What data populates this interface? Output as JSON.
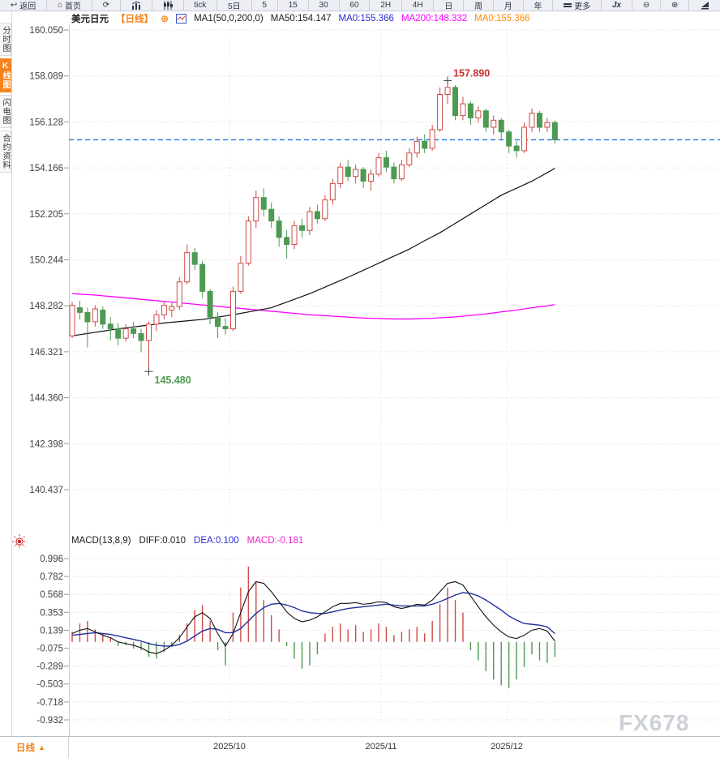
{
  "toolbar": {
    "items": [
      {
        "label": "返回"
      },
      {
        "label": "首页"
      },
      {
        "label": ""
      },
      {
        "label": ""
      },
      {
        "label": ""
      },
      {
        "label": "tick"
      },
      {
        "label": "5日"
      },
      {
        "label": "5"
      },
      {
        "label": "15"
      },
      {
        "label": "30"
      },
      {
        "label": "60"
      },
      {
        "label": "2H"
      },
      {
        "label": "4H"
      },
      {
        "label": "日"
      },
      {
        "label": "周"
      },
      {
        "label": "月"
      },
      {
        "label": "年"
      },
      {
        "label": "更多"
      },
      {
        "label": "Jx"
      },
      {
        "label": ""
      },
      {
        "label": ""
      },
      {
        "label": ""
      }
    ]
  },
  "legend": {
    "symbol": "美元日元",
    "period_tag": "【日线】",
    "add_icon": "⊕",
    "ma_settings": "MA1(50,0,200,0)",
    "ma50": "MA50:154.147",
    "ma0_blue": "MA0:155.366",
    "ma200": "MA200:148.332",
    "ma0_orange": "MA0:155.366"
  },
  "sidebar": {
    "tabs": [
      {
        "label": "分时图",
        "active": false
      },
      {
        "label": "K线图",
        "active": true
      },
      {
        "label": "闪电图",
        "active": false
      },
      {
        "label": "合约资料",
        "active": false
      }
    ]
  },
  "macd_legend": {
    "title": "MACD(13,8,9)",
    "diff": "DIFF:0.010",
    "dea": "DEA:0.100",
    "macd": "MACD:-0.181"
  },
  "bottom": {
    "period": "日线",
    "arrow": "▲"
  },
  "watermark": "FX678",
  "colors": {
    "up": "#cd4a45",
    "down": "#4d9a52",
    "ma50": "#111111",
    "ma200": "#ff00ff",
    "diff": "#111111",
    "dea": "#22309f",
    "price_line": "#1b76e0",
    "grid": "#f0dcdc",
    "axis_text": "#3f3f3f",
    "tick": "#999999",
    "high_text": "#c9302c",
    "low_text": "#4e9a52"
  },
  "chart_data": {
    "type": "candlestick",
    "title": "美元日元 日线",
    "x_labels": [
      "2025/10",
      "2025/11",
      "2025/12"
    ],
    "y_ticks_price": [
      160.05,
      158.089,
      156.128,
      154.166,
      152.205,
      150.244,
      148.282,
      146.321,
      144.36,
      142.398,
      140.437
    ],
    "current_price": 155.366,
    "high_label": "157.890",
    "low_label": "145.480",
    "candles": [
      [
        147.0,
        148.45,
        146.9,
        148.3
      ],
      [
        148.2,
        148.5,
        147.7,
        148.0
      ],
      [
        148.0,
        148.2,
        146.5,
        147.6
      ],
      [
        147.6,
        148.3,
        147.4,
        148.15
      ],
      [
        148.1,
        148.25,
        147.3,
        147.5
      ],
      [
        147.5,
        147.8,
        146.8,
        147.3
      ],
      [
        147.3,
        147.55,
        146.6,
        146.9
      ],
      [
        146.9,
        147.5,
        146.75,
        147.3
      ],
      [
        147.3,
        147.6,
        146.9,
        147.1
      ],
      [
        147.1,
        147.3,
        146.3,
        146.8
      ],
      [
        146.8,
        147.6,
        145.48,
        147.5
      ],
      [
        147.5,
        148.1,
        147.2,
        147.9
      ],
      [
        147.9,
        148.5,
        147.7,
        148.3
      ],
      [
        148.1,
        148.4,
        147.8,
        148.25
      ],
      [
        148.25,
        149.5,
        148.1,
        149.3
      ],
      [
        149.3,
        150.9,
        149.2,
        150.55
      ],
      [
        150.55,
        150.75,
        149.8,
        150.05
      ],
      [
        150.05,
        150.2,
        148.6,
        148.9
      ],
      [
        148.9,
        149.0,
        147.5,
        147.8
      ],
      [
        147.8,
        148.0,
        146.9,
        147.4
      ],
      [
        147.4,
        147.75,
        147.05,
        147.3
      ],
      [
        147.3,
        149.1,
        147.2,
        148.9
      ],
      [
        148.9,
        150.4,
        148.8,
        150.1
      ],
      [
        150.1,
        152.1,
        150.0,
        151.9
      ],
      [
        151.9,
        153.2,
        151.6,
        152.9
      ],
      [
        152.9,
        153.3,
        152.1,
        152.4
      ],
      [
        152.4,
        152.7,
        151.6,
        151.9
      ],
      [
        151.9,
        152.1,
        150.8,
        151.2
      ],
      [
        151.2,
        151.5,
        150.3,
        150.9
      ],
      [
        150.9,
        151.9,
        150.7,
        151.7
      ],
      [
        151.7,
        152.0,
        151.2,
        151.5
      ],
      [
        151.5,
        152.5,
        151.3,
        152.3
      ],
      [
        152.3,
        152.6,
        151.8,
        152.0
      ],
      [
        152.0,
        153.0,
        151.9,
        152.8
      ],
      [
        152.8,
        153.7,
        152.6,
        153.5
      ],
      [
        153.5,
        154.4,
        153.3,
        154.2
      ],
      [
        154.2,
        154.5,
        153.6,
        153.8
      ],
      [
        153.8,
        154.3,
        153.5,
        154.1
      ],
      [
        154.1,
        154.2,
        153.3,
        153.6
      ],
      [
        153.6,
        154.1,
        153.2,
        153.9
      ],
      [
        153.9,
        154.8,
        153.8,
        154.6
      ],
      [
        154.6,
        154.9,
        154.0,
        154.2
      ],
      [
        154.2,
        154.4,
        153.5,
        153.7
      ],
      [
        153.7,
        154.5,
        153.6,
        154.3
      ],
      [
        154.3,
        155.0,
        154.2,
        154.8
      ],
      [
        154.8,
        155.5,
        154.6,
        155.3
      ],
      [
        155.3,
        155.6,
        154.8,
        155.0
      ],
      [
        155.0,
        156.0,
        154.9,
        155.8
      ],
      [
        155.8,
        157.6,
        155.7,
        157.3
      ],
      [
        157.3,
        157.89,
        156.9,
        157.6
      ],
      [
        157.6,
        157.7,
        156.2,
        156.4
      ],
      [
        156.4,
        157.2,
        156.2,
        156.9
      ],
      [
        156.9,
        157.0,
        156.0,
        156.3
      ],
      [
        156.3,
        156.8,
        156.1,
        156.6
      ],
      [
        156.6,
        156.7,
        155.7,
        155.9
      ],
      [
        155.9,
        156.4,
        155.6,
        156.2
      ],
      [
        156.2,
        156.3,
        155.4,
        155.7
      ],
      [
        155.7,
        155.8,
        154.8,
        155.1
      ],
      [
        155.1,
        155.3,
        154.6,
        154.9
      ],
      [
        154.9,
        156.1,
        154.8,
        155.9
      ],
      [
        155.9,
        156.7,
        155.7,
        156.5
      ],
      [
        156.5,
        156.6,
        155.7,
        155.9
      ],
      [
        155.9,
        156.3,
        155.7,
        156.1
      ],
      [
        156.1,
        156.2,
        155.2,
        155.37
      ]
    ],
    "ma50": [
      147.0,
      147.05,
      147.1,
      147.15,
      147.2,
      147.25,
      147.3,
      147.34,
      147.38,
      147.42,
      147.46,
      147.5,
      147.55,
      147.58,
      147.61,
      147.64,
      147.67,
      147.7,
      147.75,
      147.8,
      147.85,
      147.9,
      147.96,
      148.02,
      148.08,
      148.14,
      148.2,
      148.32,
      148.44,
      148.56,
      148.68,
      148.8,
      148.94,
      149.08,
      149.22,
      149.36,
      149.5,
      149.65,
      149.8,
      149.95,
      150.1,
      150.25,
      150.4,
      150.55,
      150.7,
      150.88,
      151.06,
      151.23,
      151.4,
      151.6,
      151.8,
      152.0,
      152.2,
      152.4,
      152.6,
      152.8,
      153.0,
      153.15,
      153.3,
      153.45,
      153.6,
      153.78,
      153.96,
      154.147
    ],
    "ma200": [
      148.8,
      148.78,
      148.76,
      148.74,
      148.71,
      148.68,
      148.65,
      148.62,
      148.59,
      148.56,
      148.53,
      148.5,
      148.47,
      148.44,
      148.41,
      148.38,
      148.35,
      148.32,
      148.29,
      148.26,
      148.23,
      148.2,
      148.17,
      148.14,
      148.11,
      148.08,
      148.05,
      148.02,
      147.99,
      147.96,
      147.93,
      147.9,
      147.88,
      147.86,
      147.84,
      147.82,
      147.8,
      147.78,
      147.76,
      147.75,
      147.74,
      147.73,
      147.72,
      147.72,
      147.72,
      147.73,
      147.74,
      147.75,
      147.77,
      147.79,
      147.81,
      147.84,
      147.87,
      147.9,
      147.94,
      147.98,
      148.02,
      148.06,
      148.1,
      148.15,
      148.2,
      148.24,
      148.28,
      148.332
    ],
    "macd": {
      "params": "(13,8,9)",
      "y_ticks": [
        0.996,
        0.782,
        0.568,
        0.353,
        0.139,
        -0.075,
        -0.289,
        -0.503,
        -0.718,
        -0.932
      ],
      "hist": [
        0.12,
        0.22,
        0.25,
        0.15,
        0.1,
        0.05,
        -0.05,
        -0.04,
        -0.08,
        -0.1,
        -0.18,
        -0.2,
        -0.12,
        -0.05,
        0.08,
        0.22,
        0.38,
        0.44,
        0.25,
        -0.1,
        -0.28,
        0.35,
        0.65,
        0.9,
        0.72,
        0.5,
        0.32,
        0.15,
        -0.05,
        -0.2,
        -0.32,
        -0.28,
        -0.15,
        0.1,
        0.18,
        0.22,
        0.15,
        0.2,
        0.12,
        0.15,
        0.22,
        0.18,
        0.08,
        0.12,
        0.15,
        0.18,
        0.1,
        0.25,
        0.45,
        0.65,
        0.5,
        0.35,
        -0.1,
        -0.22,
        -0.35,
        -0.45,
        -0.52,
        -0.55,
        -0.45,
        -0.3,
        -0.15,
        -0.22,
        -0.25,
        -0.181
      ],
      "diff": [
        0.1,
        0.14,
        0.16,
        0.12,
        0.08,
        0.05,
        0.0,
        -0.02,
        -0.04,
        -0.07,
        -0.12,
        -0.14,
        -0.1,
        -0.04,
        0.05,
        0.18,
        0.3,
        0.35,
        0.28,
        0.1,
        -0.05,
        0.1,
        0.35,
        0.6,
        0.72,
        0.7,
        0.6,
        0.48,
        0.36,
        0.28,
        0.24,
        0.26,
        0.3,
        0.36,
        0.42,
        0.46,
        0.46,
        0.47,
        0.45,
        0.46,
        0.48,
        0.47,
        0.42,
        0.4,
        0.42,
        0.45,
        0.44,
        0.5,
        0.6,
        0.7,
        0.72,
        0.68,
        0.55,
        0.42,
        0.3,
        0.2,
        0.12,
        0.06,
        0.04,
        0.08,
        0.14,
        0.16,
        0.13,
        0.01
      ],
      "dea": [
        0.08,
        0.09,
        0.1,
        0.11,
        0.1,
        0.09,
        0.07,
        0.05,
        0.03,
        0.01,
        -0.02,
        -0.04,
        -0.05,
        -0.05,
        -0.03,
        0.01,
        0.07,
        0.13,
        0.16,
        0.15,
        0.11,
        0.11,
        0.16,
        0.25,
        0.34,
        0.41,
        0.45,
        0.46,
        0.44,
        0.41,
        0.37,
        0.35,
        0.34,
        0.34,
        0.36,
        0.38,
        0.4,
        0.41,
        0.42,
        0.43,
        0.44,
        0.45,
        0.44,
        0.43,
        0.43,
        0.43,
        0.43,
        0.45,
        0.48,
        0.52,
        0.56,
        0.59,
        0.58,
        0.55,
        0.5,
        0.44,
        0.38,
        0.31,
        0.26,
        0.22,
        0.21,
        0.2,
        0.18,
        0.1
      ],
      "last": {
        "diff": 0.01,
        "dea": 0.1,
        "macd": -0.181
      }
    }
  }
}
